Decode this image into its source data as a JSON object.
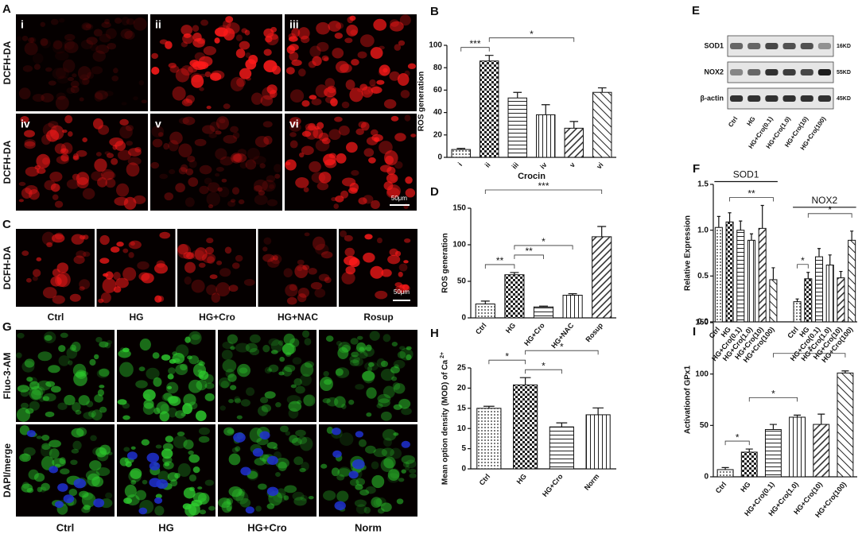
{
  "panel_A": {
    "label": "A",
    "row_labels": [
      "DCFH-DA",
      "DCFH-DA"
    ],
    "tiles": [
      "i",
      "ii",
      "iii",
      "iv",
      "v",
      "vi"
    ],
    "scale_bar": "50μm"
  },
  "panel_C": {
    "label": "C",
    "row_label": "DCFH-DA",
    "columns": [
      "Ctrl",
      "HG",
      "HG+Cro",
      "HG+NAC",
      "Rosup"
    ],
    "scale_bar": "50μm"
  },
  "panel_E": {
    "label": "E",
    "rows": [
      {
        "protein": "SOD1",
        "size": "16KD"
      },
      {
        "protein": "NOX2",
        "size": "55KD"
      },
      {
        "protein": "β-actin",
        "size": "45KD"
      }
    ],
    "lanes": [
      "Ctrl",
      "HG",
      "HG+Cro(0.1)",
      "HG+Cro(1.0)",
      "HG+Cro(10)",
      "HG+Cro(100)"
    ]
  },
  "panel_G": {
    "label": "G",
    "row_labels": [
      "Fluo-3-AM",
      "DAPI/merge"
    ],
    "columns": [
      "Ctrl",
      "HG",
      "HG+Cro",
      "Norm"
    ]
  },
  "chart_data": [
    {
      "panel": "B",
      "type": "bar",
      "ylabel": "ROS generation",
      "xlabel": "Crocin",
      "categories": [
        "i",
        "ii",
        "iii",
        "iv",
        "v",
        "vi"
      ],
      "values": [
        7,
        86,
        53,
        38,
        26,
        58
      ],
      "errors": [
        1,
        5,
        5,
        9,
        6,
        4
      ],
      "ylim": [
        0,
        100
      ],
      "yticks": [
        0,
        20,
        40,
        60,
        80,
        100
      ],
      "annotations": [
        {
          "text": "***",
          "between": [
            0,
            1
          ]
        },
        {
          "text": "*",
          "between": [
            1,
            4
          ]
        }
      ]
    },
    {
      "panel": "D",
      "type": "bar",
      "ylabel": "ROS generation",
      "categories": [
        "Ctrl",
        "HG",
        "HG+Cro",
        "HG+NAC",
        "Rosup"
      ],
      "values": [
        19,
        59,
        15,
        31,
        111
      ],
      "errors": [
        4,
        3,
        1,
        2,
        14
      ],
      "ylim": [
        0,
        150
      ],
      "yticks": [
        0,
        50,
        100,
        150
      ],
      "annotations": [
        {
          "text": "**",
          "between": [
            0,
            1
          ]
        },
        {
          "text": "**",
          "between": [
            1,
            2
          ]
        },
        {
          "text": "*",
          "between": [
            1,
            3
          ]
        },
        {
          "text": "***",
          "between": [
            0,
            4
          ]
        }
      ]
    },
    {
      "panel": "F",
      "type": "bar",
      "ylabel": "Relative Expression",
      "categories": [
        "Ctrl",
        "HG",
        "HG+Cro(0.1)",
        "HG+Cro(1.0)",
        "HG+Cro(10)",
        "HG+Cro(100)",
        "Ctrl",
        "HG",
        "HG+Cro(0.1)",
        "HG+Cro(1.0)",
        "HG+Cro(10)",
        "HG+Cro(100)"
      ],
      "values": [
        1.03,
        1.09,
        1.0,
        0.89,
        1.02,
        0.46,
        0.22,
        0.47,
        0.71,
        0.62,
        0.48,
        0.89
      ],
      "errors": [
        0.12,
        0.1,
        0.1,
        0.07,
        0.25,
        0.13,
        0.03,
        0.07,
        0.09,
        0.11,
        0.07,
        0.1
      ],
      "group_labels": [
        {
          "text": "SOD1",
          "span": [
            0,
            5
          ]
        },
        {
          "text": "NOX2",
          "span": [
            6,
            11
          ]
        }
      ],
      "ylim": [
        0,
        1.5
      ],
      "yticks": [
        {
          "value": 0,
          "label": "0.0"
        },
        0.5,
        {
          "value": 1,
          "label": "1.0"
        },
        1.5
      ],
      "annotations": [
        {
          "text": "**",
          "between": [
            1,
            5
          ]
        },
        {
          "text": "*",
          "between": [
            6,
            7
          ]
        },
        {
          "text": "*",
          "between": [
            7,
            11
          ]
        }
      ]
    },
    {
      "panel": "H",
      "type": "bar",
      "ylabel": "Mean option density (MOD) of Ca",
      "ylabel_superscript": "2+",
      "categories": [
        "Ctrl",
        "HG",
        "HG+Cro",
        "Norm"
      ],
      "values": [
        15,
        20.8,
        10.4,
        13.4
      ],
      "errors": [
        0.5,
        1.8,
        1.0,
        1.7
      ],
      "ylim": [
        0,
        25
      ],
      "yticks": [
        0,
        5,
        10,
        15,
        20,
        25
      ],
      "annotations": [
        {
          "text": "*",
          "between": [
            1,
            2
          ]
        },
        {
          "text": "*",
          "between": [
            0,
            1
          ]
        },
        {
          "text": "*",
          "between": [
            1,
            3
          ]
        }
      ]
    },
    {
      "panel": "I",
      "type": "bar",
      "ylabel": "Activationof GPx1",
      "categories": [
        "Ctrl",
        "HG",
        "HG+Cro(0.1)",
        "HG+Cro(1.0)",
        "HG+Cro(10)",
        "HG+Cro(100)"
      ],
      "values": [
        7,
        24,
        46,
        58,
        51,
        101
      ],
      "errors": [
        2,
        3,
        5,
        2,
        10,
        2
      ],
      "ylim": [
        0,
        150
      ],
      "yticks": [
        0,
        50,
        100,
        150
      ],
      "annotations": [
        {
          "text": "*",
          "between": [
            0,
            1
          ]
        },
        {
          "text": "*",
          "between": [
            1,
            3
          ]
        },
        {
          "text": "*",
          "between": [
            2,
            5
          ]
        }
      ]
    }
  ]
}
